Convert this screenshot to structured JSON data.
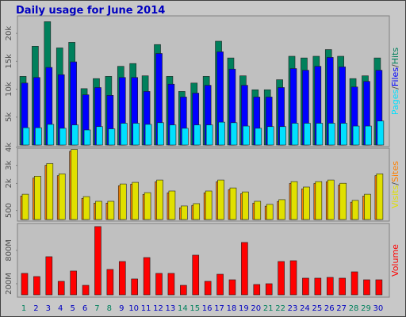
{
  "chart_data": [
    {
      "type": "bar",
      "title": "Daily usage for June 2014",
      "legend_separator": "/",
      "ylim": [
        0,
        23000
      ],
      "yticks": [
        {
          "value": 5000,
          "label": "5k"
        },
        {
          "value": 10000,
          "label": "10k"
        },
        {
          "value": 15000,
          "label": "15k"
        },
        {
          "value": 20000,
          "label": "20k"
        }
      ],
      "series": [
        {
          "name": "Pages",
          "color": "#00e0ff",
          "values": [
            3100,
            3100,
            3700,
            3000,
            3600,
            2700,
            3300,
            2900,
            3900,
            3900,
            3700,
            4000,
            3600,
            3000,
            3600,
            3600,
            4100,
            4000,
            3400,
            3000,
            3300,
            3300,
            3900,
            3900,
            3900,
            3900,
            3900,
            3400,
            3400,
            4300
          ]
        },
        {
          "name": "Files",
          "color": "#0000ff",
          "values": [
            11100,
            12100,
            13900,
            12600,
            14900,
            9000,
            10300,
            8900,
            12100,
            12100,
            9600,
            16400,
            10900,
            8600,
            9300,
            10700,
            16700,
            13600,
            10700,
            8600,
            8600,
            10300,
            13700,
            13400,
            14100,
            15700,
            14000,
            10400,
            11400,
            13400
          ]
        },
        {
          "name": "Hits",
          "color": "#00805c",
          "values": [
            12300,
            17700,
            22100,
            17400,
            18400,
            10100,
            11900,
            12300,
            14100,
            14600,
            12400,
            18000,
            12300,
            9600,
            11100,
            12300,
            18600,
            15600,
            12400,
            9900,
            9900,
            11700,
            15900,
            15600,
            15900,
            17100,
            15900,
            11900,
            12400,
            15600
          ]
        }
      ]
    },
    {
      "type": "bar",
      "legend_separator": "/",
      "ylim": [
        0,
        3950
      ],
      "yticks": [
        500,
        {
          "value": 2000,
          "label": "2k"
        },
        {
          "value": 3000,
          "label": "3k"
        },
        {
          "value": 4000,
          "label": "4k"
        }
      ],
      "series": [
        {
          "name": "Visits",
          "color": "#e0e000",
          "values": [
            1400,
            2400,
            3100,
            2530,
            3880,
            1270,
            1010,
            1010,
            1970,
            2060,
            1490,
            2190,
            1580,
            750,
            880,
            1580,
            2190,
            1750,
            1530,
            1010,
            840,
            1100,
            2100,
            1800,
            2100,
            2190,
            2010,
            1060,
            1400,
            2530
          ]
        },
        {
          "name": "Sites",
          "color": "#ff8000",
          "values": [
            1300,
            2300,
            3000,
            2430,
            3780,
            1170,
            910,
            910,
            1870,
            1960,
            1390,
            2090,
            1480,
            650,
            780,
            1480,
            2090,
            1650,
            1430,
            910,
            740,
            1000,
            2000,
            1700,
            2000,
            2090,
            1910,
            960,
            1300,
            2430
          ]
        }
      ]
    },
    {
      "type": "bar",
      "ylim": [
        0,
        1270
      ],
      "yticks": [
        {
          "value": 200,
          "label": "200M"
        },
        {
          "value": 800,
          "label": "800M"
        }
      ],
      "categories": [
        "1",
        "2",
        "3",
        "4",
        "5",
        "6",
        "7",
        "8",
        "9",
        "10",
        "11",
        "12",
        "13",
        "14",
        "15",
        "16",
        "17",
        "18",
        "19",
        "20",
        "21",
        "22",
        "23",
        "24",
        "25",
        "26",
        "27",
        "28",
        "29",
        "30"
      ],
      "category_colors": [
        "#00805c",
        "#0000c0",
        "#0000c0",
        "#0000c0",
        "#0000c0",
        "#0000c0",
        "#00805c",
        "#00805c",
        "#0000c0",
        "#0000c0",
        "#0000c0",
        "#0000c0",
        "#0000c0",
        "#00805c",
        "#00805c",
        "#0000c0",
        "#0000c0",
        "#0000c0",
        "#0000c0",
        "#0000c0",
        "#00805c",
        "#00805c",
        "#0000c0",
        "#0000c0",
        "#0000c0",
        "#0000c0",
        "#0000c0",
        "#00805c",
        "#00805c",
        "#0000c0"
      ],
      "series": [
        {
          "name": "Volume",
          "color": "#ff0000",
          "values": [
            386,
            329,
            686,
            243,
            429,
            171,
            1229,
            457,
            600,
            286,
            671,
            386,
            386,
            171,
            714,
            243,
            371,
            271,
            943,
            186,
            200,
            600,
            614,
            300,
            300,
            314,
            300,
            414,
            271,
            271
          ]
        }
      ]
    }
  ]
}
